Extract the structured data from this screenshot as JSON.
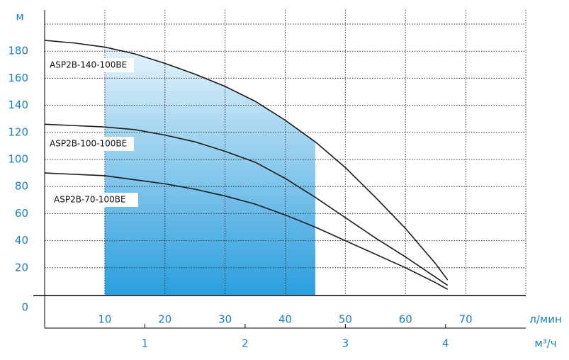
{
  "chart_data": {
    "type": "line",
    "x": [
      0,
      5,
      10,
      15,
      20,
      25,
      30,
      35,
      40,
      45,
      50,
      55,
      60,
      65,
      67
    ],
    "series": [
      {
        "name": "ASP2B-140-100BE",
        "color": "#1a1a1a",
        "values": [
          188,
          186,
          183,
          178,
          171,
          163,
          154,
          143,
          129,
          113,
          94,
          72,
          49,
          23,
          11
        ]
      },
      {
        "name": "ASP2B-100-100BE",
        "color": "#1a1a1a",
        "values": [
          126,
          125,
          124,
          122,
          118,
          113,
          106,
          98,
          86,
          72,
          57,
          42,
          28,
          13,
          7
        ]
      },
      {
        "name": "ASP2B-70-100BE",
        "color": "#1a1a1a",
        "values": [
          90,
          89,
          88,
          85,
          82,
          78,
          73,
          67,
          59,
          50,
          40,
          30,
          20,
          9,
          4
        ]
      }
    ],
    "highlight_range": [
      10,
      45
    ],
    "xlim": [
      0,
      80
    ],
    "xticks": [
      10,
      20,
      30,
      40,
      50,
      60,
      70
    ],
    "x_label": "л/мин",
    "x2lim": [
      0,
      4.8
    ],
    "x2ticks": [
      1,
      2,
      3,
      4
    ],
    "x2_label": "м³/ч",
    "ylim": [
      0,
      200
    ],
    "yticks": [
      0,
      20,
      40,
      60,
      80,
      100,
      120,
      140,
      160,
      180
    ],
    "y_label": "м",
    "grid": true
  }
}
